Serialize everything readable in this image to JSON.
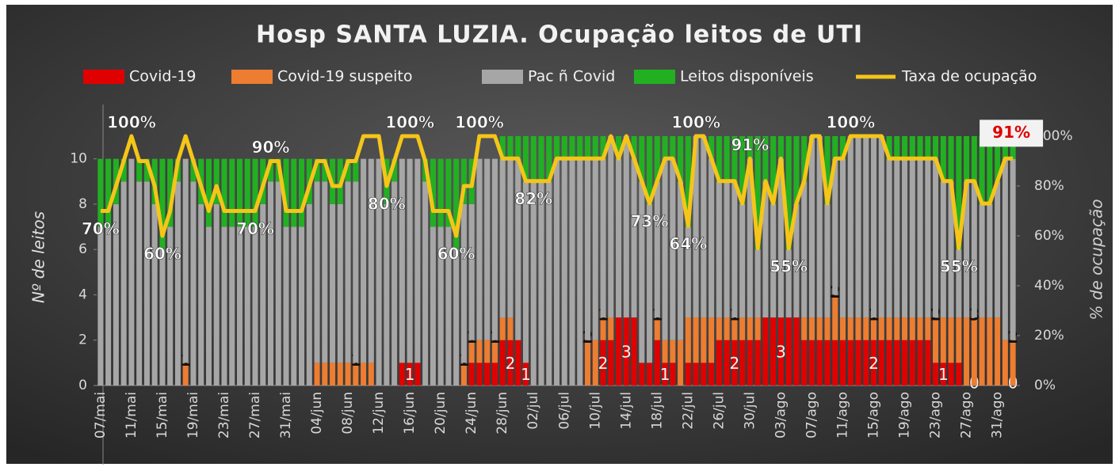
{
  "chart_data": {
    "type": "bar",
    "stacked": true,
    "title": "Hosp SANTA LUZIA. Ocupação leitos de UTI",
    "ylabel": "Nº de leitos",
    "y2label": "% de ocupação",
    "categories": [
      "07/mai",
      null,
      null,
      null,
      "11/mai",
      null,
      null,
      null,
      "15/mai",
      null,
      null,
      null,
      "19/mai",
      null,
      null,
      null,
      "23/mai",
      null,
      null,
      null,
      "27/mai",
      null,
      null,
      null,
      "31/mai",
      null,
      null,
      null,
      "04/jun",
      null,
      null,
      null,
      "08/jun",
      null,
      null,
      null,
      "12/jun",
      null,
      null,
      null,
      "16/jun",
      null,
      null,
      null,
      "20/jun",
      null,
      null,
      null,
      "24/jun",
      null,
      null,
      null,
      "28/jun",
      null,
      null,
      null,
      "02/jul",
      null,
      null,
      null,
      "06/jul",
      null,
      null,
      null,
      "10/jul",
      null,
      null,
      null,
      "14/jul",
      null,
      null,
      null,
      "18/jul",
      null,
      null,
      null,
      "22/jul",
      null,
      null,
      null,
      "26/jul",
      null,
      null,
      null,
      "30/jul",
      null,
      null,
      null,
      "03/ago",
      null,
      null,
      null,
      "07/ago",
      null,
      null,
      null,
      "11/ago",
      null,
      null,
      null,
      "15/ago",
      null,
      null,
      null,
      "19/ago",
      null,
      null,
      null,
      "23/ago",
      null,
      null,
      null,
      "27/ago",
      null,
      null,
      null,
      "31/ago",
      null,
      null
    ],
    "ylim": [
      0,
      11
    ],
    "yticks": [
      0,
      2,
      4,
      6,
      8,
      10
    ],
    "y2lim": [
      0,
      100
    ],
    "y2ticks": [
      {
        "value": 0,
        "label": "0%"
      },
      {
        "value": 20,
        "label": "20%"
      },
      {
        "value": 40,
        "label": "40%"
      },
      {
        "value": 60,
        "label": "60%"
      },
      {
        "value": 80,
        "label": "80%"
      },
      {
        "value": 100,
        "label": "100%"
      }
    ],
    "legend": "top",
    "series": [
      {
        "name": "Covid-19",
        "color": "#e00000",
        "values": [
          0,
          0,
          0,
          0,
          0,
          0,
          0,
          0,
          0,
          0,
          0,
          0,
          0,
          0,
          0,
          0,
          0,
          0,
          0,
          0,
          0,
          0,
          0,
          0,
          0,
          0,
          0,
          0,
          0,
          0,
          0,
          0,
          0,
          0,
          0,
          0,
          0,
          0,
          0,
          1,
          1,
          1,
          0,
          0,
          0,
          0,
          0,
          0,
          1,
          1,
          1,
          1,
          2,
          2,
          2,
          1,
          0,
          0,
          0,
          0,
          0,
          0,
          0,
          0,
          0,
          2,
          2,
          3,
          3,
          3,
          1,
          1,
          2,
          1,
          1,
          0,
          1,
          1,
          1,
          1,
          2,
          2,
          2,
          2,
          2,
          2,
          3,
          3,
          3,
          3,
          3,
          2,
          2,
          2,
          2,
          2,
          2,
          2,
          2,
          2,
          2,
          2,
          2,
          2,
          2,
          2,
          2,
          2,
          1,
          1,
          1,
          1,
          0,
          0,
          0,
          0,
          0,
          0,
          0
        ],
        "value_labels": [
          null,
          null,
          null,
          null,
          null,
          null,
          null,
          null,
          null,
          null,
          null,
          null,
          null,
          null,
          null,
          null,
          null,
          null,
          null,
          null,
          null,
          null,
          null,
          null,
          null,
          null,
          null,
          null,
          null,
          null,
          null,
          null,
          null,
          null,
          null,
          null,
          null,
          null,
          null,
          null,
          "1",
          null,
          null,
          null,
          null,
          null,
          null,
          null,
          null,
          null,
          null,
          null,
          null,
          "2",
          null,
          "1",
          null,
          null,
          null,
          null,
          null,
          null,
          null,
          null,
          null,
          "2",
          null,
          null,
          "3",
          null,
          null,
          null,
          null,
          "1",
          null,
          null,
          null,
          null,
          null,
          null,
          null,
          null,
          "2",
          null,
          null,
          null,
          null,
          null,
          "3",
          null,
          null,
          null,
          null,
          null,
          null,
          null,
          null,
          null,
          null,
          null,
          "2",
          null,
          null,
          null,
          null,
          null,
          null,
          null,
          null,
          "1",
          null,
          null,
          null,
          "0",
          null,
          null,
          null,
          null,
          "0"
        ]
      },
      {
        "name": "Covid-19 suspeito",
        "color": "#ed7d31",
        "values": [
          0,
          0,
          0,
          0,
          0,
          0,
          0,
          0,
          0,
          0,
          0,
          1,
          0,
          0,
          0,
          0,
          0,
          0,
          0,
          0,
          0,
          0,
          0,
          0,
          0,
          0,
          0,
          0,
          1,
          1,
          1,
          1,
          1,
          1,
          1,
          1,
          0,
          0,
          0,
          0,
          0,
          0,
          0,
          0,
          0,
          0,
          0,
          1,
          1,
          1,
          1,
          1,
          1,
          1,
          0,
          0,
          0,
          0,
          0,
          0,
          0,
          0,
          0,
          2,
          2,
          1,
          1,
          0,
          0,
          0,
          0,
          0,
          1,
          1,
          1,
          2,
          2,
          2,
          2,
          2,
          1,
          1,
          1,
          1,
          1,
          1,
          0,
          0,
          0,
          0,
          0,
          1,
          1,
          1,
          1,
          2,
          1,
          1,
          1,
          1,
          1,
          1,
          1,
          1,
          1,
          1,
          1,
          1,
          2,
          2,
          2,
          2,
          3,
          3,
          3,
          3,
          3,
          2,
          2
        ],
        "value_labels": [
          null,
          null,
          null,
          null,
          null,
          null,
          null,
          null,
          null,
          null,
          null,
          "1",
          null,
          null,
          null,
          null,
          null,
          null,
          null,
          null,
          null,
          null,
          null,
          null,
          null,
          null,
          null,
          null,
          null,
          null,
          null,
          null,
          null,
          "1",
          null,
          null,
          null,
          null,
          null,
          null,
          null,
          null,
          null,
          null,
          null,
          null,
          null,
          "1",
          "1",
          null,
          null,
          "1",
          null,
          null,
          null,
          null,
          null,
          null,
          null,
          null,
          null,
          null,
          null,
          "2",
          null,
          "1",
          null,
          null,
          null,
          null,
          null,
          null,
          "1",
          null,
          null,
          null,
          null,
          null,
          null,
          null,
          null,
          null,
          "1",
          null,
          null,
          null,
          null,
          null,
          null,
          null,
          null,
          null,
          null,
          null,
          null,
          "2",
          null,
          null,
          null,
          null,
          "1",
          null,
          null,
          null,
          null,
          null,
          null,
          null,
          "2",
          null,
          null,
          null,
          null,
          "3",
          null,
          null,
          null,
          null,
          "2"
        ]
      },
      {
        "name": "Pac ñ Covid",
        "color": "#a6a6a6",
        "values": [
          7,
          7,
          8,
          9,
          10,
          9,
          9,
          8,
          6,
          7,
          9,
          9,
          9,
          8,
          7,
          8,
          7,
          7,
          7,
          7,
          7,
          8,
          9,
          9,
          7,
          7,
          7,
          8,
          8,
          8,
          7,
          7,
          8,
          8,
          9,
          9,
          10,
          8,
          9,
          9,
          9,
          9,
          9,
          7,
          7,
          7,
          6,
          7,
          6,
          8,
          8,
          8,
          7,
          7,
          8,
          8,
          9,
          9,
          9,
          10,
          10,
          10,
          10,
          8,
          8,
          7,
          8,
          7,
          8,
          7,
          8,
          7,
          6,
          8,
          8,
          7,
          4,
          8,
          8,
          7,
          6,
          6,
          6,
          5,
          7,
          3,
          6,
          5,
          7,
          3,
          5,
          6,
          8,
          8,
          5,
          6,
          7,
          8,
          8,
          8,
          8,
          8,
          7,
          7,
          7,
          7,
          7,
          7,
          7,
          6,
          6,
          3,
          6,
          6,
          5,
          5,
          6,
          8,
          8
        ]
      },
      {
        "name": "Leitos disponíveis",
        "color": "#22b022",
        "values": [
          3,
          3,
          2,
          1,
          0,
          1,
          1,
          2,
          4,
          3,
          1,
          0,
          1,
          2,
          3,
          2,
          3,
          3,
          3,
          3,
          3,
          2,
          1,
          1,
          3,
          3,
          3,
          2,
          1,
          1,
          2,
          2,
          1,
          1,
          0,
          0,
          0,
          2,
          1,
          0,
          0,
          0,
          1,
          3,
          3,
          3,
          4,
          2,
          2,
          0,
          0,
          0,
          1,
          1,
          1,
          2,
          2,
          2,
          2,
          1,
          1,
          1,
          1,
          1,
          1,
          1,
          0,
          1,
          0,
          1,
          2,
          3,
          2,
          1,
          1,
          2,
          4,
          0,
          0,
          1,
          2,
          2,
          2,
          3,
          1,
          5,
          2,
          3,
          1,
          5,
          3,
          2,
          0,
          0,
          3,
          1,
          1,
          0,
          0,
          0,
          0,
          0,
          1,
          1,
          1,
          1,
          1,
          1,
          1,
          2,
          2,
          5,
          2,
          2,
          3,
          3,
          2,
          1,
          1
        ]
      },
      {
        "name": "Taxa de ocupação",
        "type": "line",
        "axis": "y2",
        "color": "#f5c518",
        "values": [
          70,
          70,
          80,
          90,
          100,
          90,
          90,
          80,
          60,
          70,
          90,
          100,
          90,
          80,
          70,
          80,
          70,
          70,
          70,
          70,
          70,
          80,
          90,
          90,
          70,
          70,
          70,
          80,
          90,
          90,
          80,
          80,
          90,
          90,
          100,
          100,
          100,
          80,
          90,
          100,
          100,
          100,
          90,
          70,
          70,
          70,
          60,
          80,
          80,
          100,
          100,
          100,
          91,
          91,
          91,
          82,
          82,
          82,
          82,
          91,
          91,
          91,
          91,
          91,
          91,
          91,
          100,
          91,
          100,
          91,
          82,
          73,
          82,
          91,
          91,
          82,
          64,
          100,
          100,
          91,
          82,
          82,
          82,
          73,
          91,
          55,
          82,
          73,
          91,
          55,
          73,
          82,
          100,
          100,
          73,
          91,
          91,
          100,
          100,
          100,
          100,
          100,
          91,
          91,
          91,
          91,
          91,
          91,
          91,
          82,
          82,
          55,
          82,
          82,
          73,
          73,
          82,
          91,
          91
        ],
        "value_labels": [
          "70%",
          null,
          null,
          null,
          "100%",
          null,
          null,
          null,
          "60%",
          null,
          null,
          null,
          null,
          null,
          null,
          null,
          null,
          null,
          null,
          null,
          "70%",
          null,
          "90%",
          null,
          null,
          null,
          null,
          null,
          null,
          null,
          null,
          null,
          null,
          null,
          null,
          null,
          null,
          "80%",
          null,
          null,
          "100%",
          null,
          null,
          null,
          null,
          null,
          "60%",
          null,
          null,
          "100%",
          null,
          null,
          null,
          null,
          null,
          null,
          "82%",
          null,
          null,
          null,
          null,
          null,
          null,
          null,
          null,
          null,
          null,
          null,
          null,
          null,
          null,
          "73%",
          null,
          null,
          null,
          null,
          "64%",
          "100%",
          null,
          null,
          null,
          null,
          null,
          null,
          "91%",
          null,
          null,
          null,
          null,
          "55%",
          null,
          null,
          null,
          null,
          null,
          null,
          null,
          "100%",
          null,
          null,
          null,
          null,
          null,
          null,
          null,
          null,
          null,
          null,
          null,
          null,
          null,
          "55%",
          null,
          null,
          null,
          null,
          null,
          null,
          "91%"
        ]
      }
    ]
  }
}
